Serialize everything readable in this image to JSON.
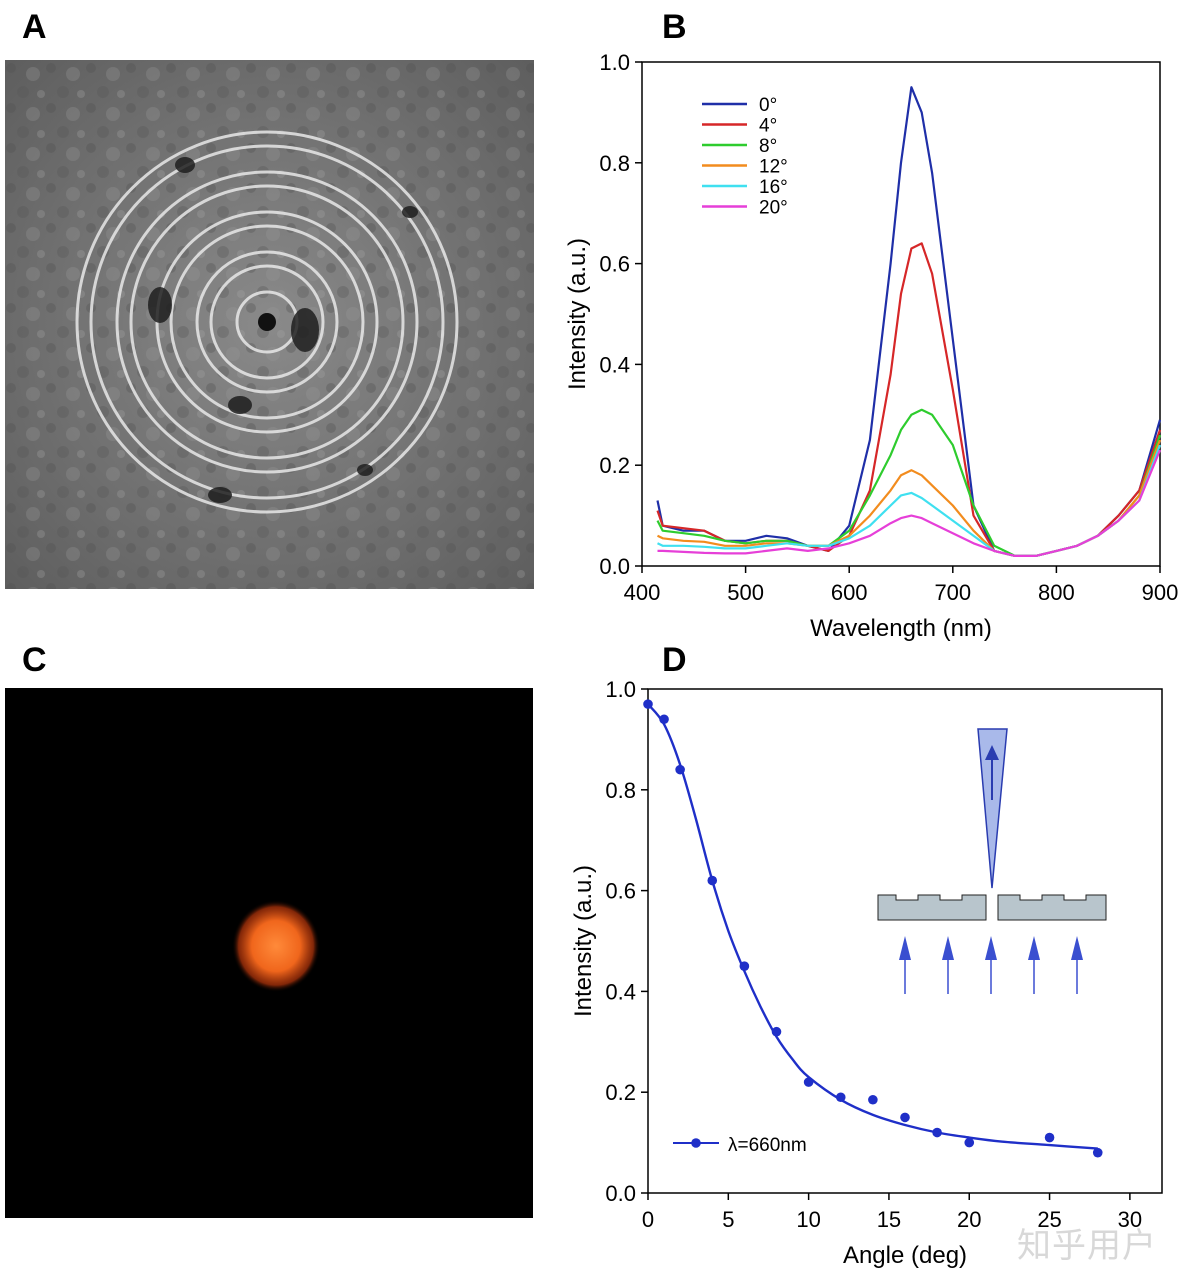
{
  "panels": {
    "a": {
      "letter": "A"
    },
    "b": {
      "letter": "B"
    },
    "c": {
      "letter": "C"
    },
    "d": {
      "letter": "D"
    }
  },
  "watermark": "知乎用户",
  "chart_data": [
    {
      "panel": "B",
      "type": "line",
      "xlabel": "Wavelength (nm)",
      "ylabel": "Intensity (a.u.)",
      "xlim": [
        400,
        900
      ],
      "ylim": [
        0.0,
        1.0
      ],
      "xticks": [
        400,
        500,
        600,
        700,
        800,
        900
      ],
      "yticks": [
        "0.0",
        "0.2",
        "0.4",
        "0.6",
        "0.8",
        "1.0"
      ],
      "legend_position": "top-left",
      "x": [
        415,
        420,
        440,
        460,
        480,
        500,
        520,
        540,
        560,
        580,
        600,
        620,
        640,
        650,
        660,
        670,
        680,
        700,
        720,
        740,
        760,
        780,
        800,
        820,
        840,
        860,
        880,
        900
      ],
      "series": [
        {
          "name": "0°",
          "color": "#1f2fa8",
          "values": [
            0.13,
            0.08,
            0.07,
            0.07,
            0.05,
            0.05,
            0.06,
            0.055,
            0.04,
            0.03,
            0.08,
            0.25,
            0.6,
            0.8,
            0.95,
            0.9,
            0.78,
            0.45,
            0.12,
            0.03,
            0.02,
            0.02,
            0.03,
            0.04,
            0.06,
            0.1,
            0.15,
            0.29
          ]
        },
        {
          "name": "4°",
          "color": "#d62728",
          "values": [
            0.11,
            0.08,
            0.075,
            0.07,
            0.05,
            0.045,
            0.05,
            0.05,
            0.04,
            0.03,
            0.06,
            0.15,
            0.38,
            0.54,
            0.63,
            0.64,
            0.58,
            0.35,
            0.1,
            0.03,
            0.02,
            0.02,
            0.03,
            0.04,
            0.06,
            0.1,
            0.15,
            0.27
          ]
        },
        {
          "name": "8°",
          "color": "#2ecc2e",
          "values": [
            0.09,
            0.07,
            0.065,
            0.06,
            0.05,
            0.045,
            0.05,
            0.05,
            0.04,
            0.04,
            0.07,
            0.14,
            0.22,
            0.27,
            0.3,
            0.31,
            0.3,
            0.24,
            0.12,
            0.04,
            0.02,
            0.02,
            0.03,
            0.04,
            0.06,
            0.09,
            0.14,
            0.26
          ]
        },
        {
          "name": "12°",
          "color": "#f28c1e",
          "values": [
            0.06,
            0.055,
            0.05,
            0.048,
            0.04,
            0.04,
            0.045,
            0.045,
            0.04,
            0.04,
            0.06,
            0.1,
            0.15,
            0.18,
            0.19,
            0.18,
            0.16,
            0.12,
            0.07,
            0.03,
            0.02,
            0.02,
            0.03,
            0.04,
            0.06,
            0.09,
            0.14,
            0.25
          ]
        },
        {
          "name": "16°",
          "color": "#3fe0f0",
          "values": [
            0.045,
            0.04,
            0.04,
            0.038,
            0.035,
            0.035,
            0.04,
            0.045,
            0.04,
            0.04,
            0.055,
            0.08,
            0.12,
            0.14,
            0.145,
            0.135,
            0.12,
            0.09,
            0.06,
            0.03,
            0.02,
            0.02,
            0.03,
            0.04,
            0.06,
            0.09,
            0.13,
            0.24
          ]
        },
        {
          "name": "20°",
          "color": "#e63fd8",
          "values": [
            0.03,
            0.03,
            0.028,
            0.026,
            0.025,
            0.025,
            0.03,
            0.035,
            0.03,
            0.035,
            0.045,
            0.06,
            0.085,
            0.095,
            0.1,
            0.095,
            0.085,
            0.065,
            0.045,
            0.03,
            0.02,
            0.02,
            0.03,
            0.04,
            0.06,
            0.09,
            0.13,
            0.23
          ]
        }
      ]
    },
    {
      "panel": "D",
      "type": "scatter",
      "xlabel": "Angle (deg)",
      "ylabel": "Intensity (a.u.)",
      "xlim": [
        0,
        32
      ],
      "ylim": [
        0.0,
        1.0
      ],
      "xticks": [
        0,
        5,
        10,
        15,
        20,
        25,
        30
      ],
      "yticks": [
        "0.0",
        "0.2",
        "0.4",
        "0.6",
        "0.8",
        "1.0"
      ],
      "legend_position": "bottom-left",
      "series": [
        {
          "name": "λ=660nm",
          "color": "#1f2fc8",
          "points": [
            [
              0,
              0.97
            ],
            [
              1,
              0.94
            ],
            [
              2,
              0.84
            ],
            [
              4,
              0.62
            ],
            [
              6,
              0.45
            ],
            [
              8,
              0.32
            ],
            [
              10,
              0.22
            ],
            [
              12,
              0.19
            ],
            [
              14,
              0.185
            ],
            [
              16,
              0.15
            ],
            [
              18,
              0.12
            ],
            [
              20,
              0.1
            ],
            [
              25,
              0.11
            ],
            [
              28,
              0.08
            ]
          ],
          "fit": [
            [
              0,
              0.97
            ],
            [
              1,
              0.93
            ],
            [
              2,
              0.85
            ],
            [
              3,
              0.74
            ],
            [
              4,
              0.62
            ],
            [
              5,
              0.52
            ],
            [
              6,
              0.44
            ],
            [
              7,
              0.37
            ],
            [
              8,
              0.31
            ],
            [
              9,
              0.265
            ],
            [
              10,
              0.23
            ],
            [
              12,
              0.185
            ],
            [
              14,
              0.155
            ],
            [
              16,
              0.135
            ],
            [
              18,
              0.12
            ],
            [
              20,
              0.11
            ],
            [
              22,
              0.102
            ],
            [
              25,
              0.095
            ],
            [
              28,
              0.088
            ]
          ]
        }
      ]
    }
  ]
}
